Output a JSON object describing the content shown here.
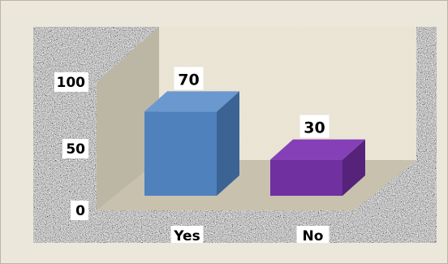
{
  "chart_data": {
    "type": "bar",
    "categories": [
      "Yes",
      "No"
    ],
    "values": [
      70,
      30
    ],
    "ylim": [
      0,
      100
    ],
    "yticks": [
      0,
      50,
      100
    ],
    "data_labels": [
      "70",
      "30"
    ],
    "title": "",
    "xlabel": "",
    "ylabel": "",
    "legend": "none",
    "grid": false,
    "style": "3d-column"
  },
  "colors": {
    "yes_front": "#4f81bd",
    "yes_side": "#3b6494",
    "yes_top": "#6a98cf",
    "no_front": "#7030a0",
    "no_side": "#55237a",
    "no_top": "#8540b8",
    "back_wall": "#e8e2d4",
    "side_wall": "#bdb7a6",
    "floor": "#c6c0b0",
    "plot_background": "granite-texture"
  }
}
